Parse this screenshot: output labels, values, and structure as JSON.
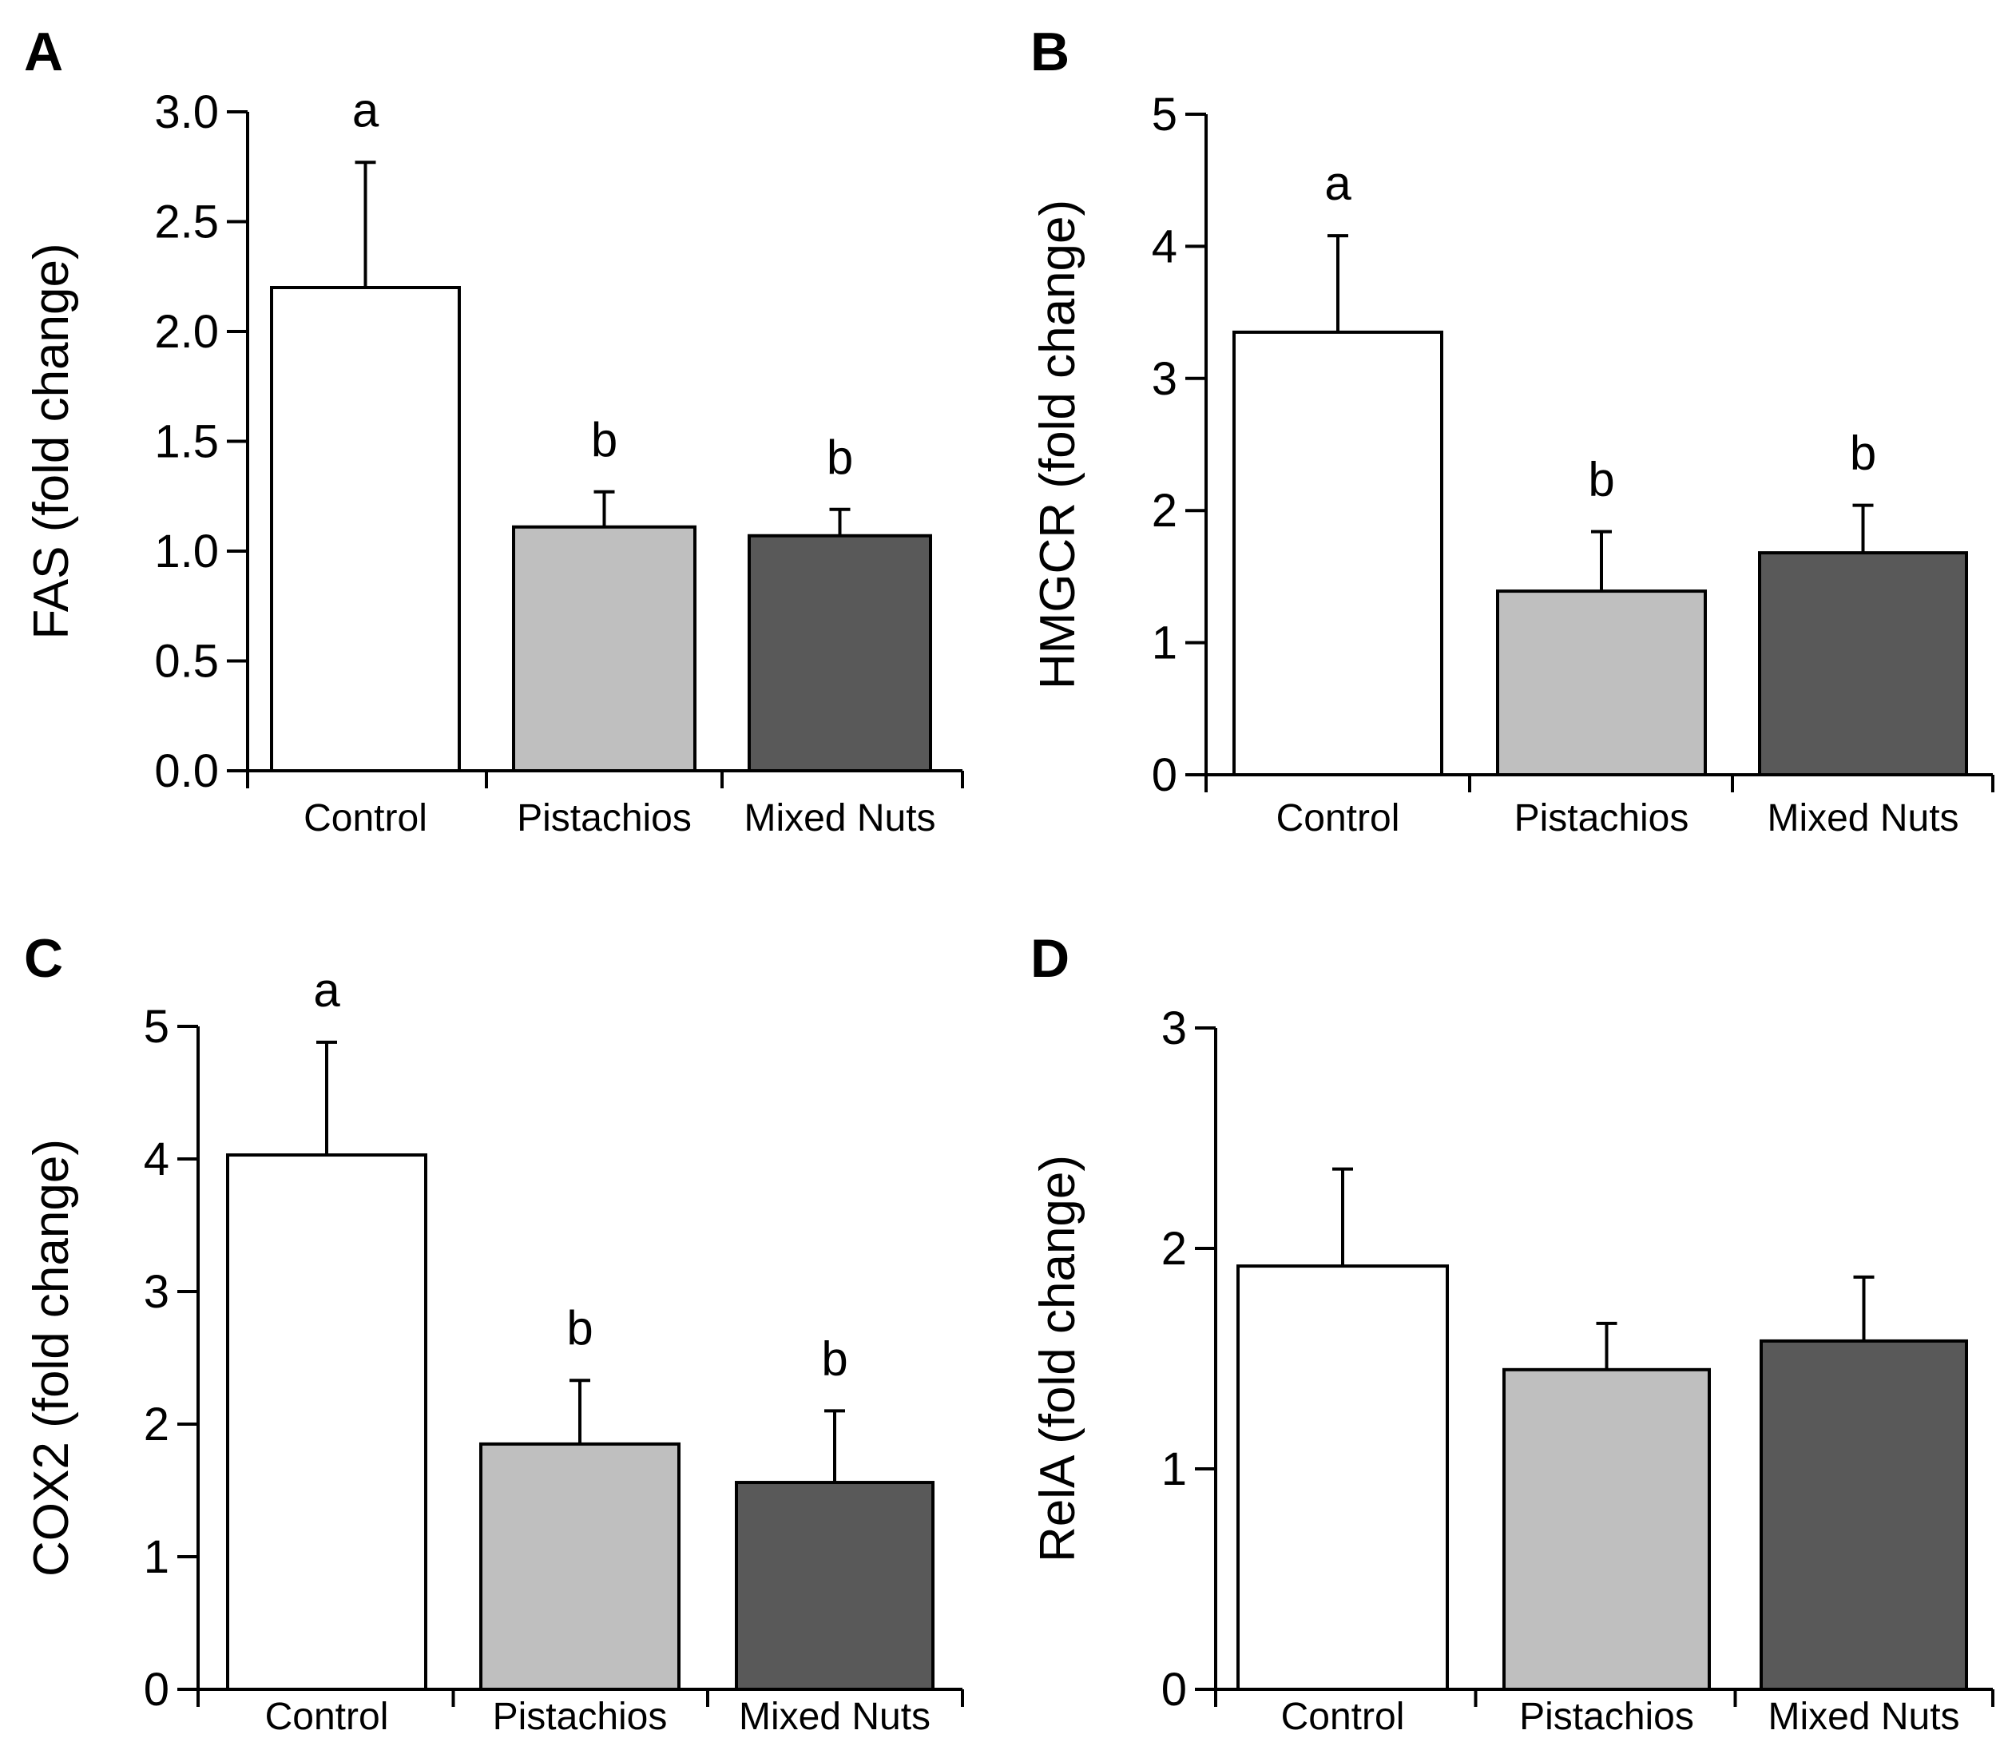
{
  "colors": {
    "control": "#ffffff",
    "pistachios": "#bfbfbf",
    "mixed_nuts": "#595959",
    "axis": "#000000"
  },
  "chart_data": [
    {
      "panel": "A",
      "type": "bar",
      "ylabel": "FAS (fold change)",
      "ylim": [
        0,
        3.0
      ],
      "yticks": [
        "0.0",
        "0.5",
        "1.0",
        "1.5",
        "2.0",
        "2.5",
        "3.0"
      ],
      "categories": [
        "Control",
        "Pistachios",
        "Mixed Nuts"
      ],
      "values": [
        2.2,
        1.11,
        1.07
      ],
      "errors": [
        0.57,
        0.16,
        0.12
      ],
      "significance": [
        "a",
        "b",
        "b"
      ]
    },
    {
      "panel": "B",
      "type": "bar",
      "ylabel": "HMGCR (fold change)",
      "ylim": [
        0,
        5
      ],
      "yticks": [
        "0",
        "1",
        "2",
        "3",
        "4",
        "5"
      ],
      "categories": [
        "Control",
        "Pistachios",
        "Mixed Nuts"
      ],
      "values": [
        3.35,
        1.39,
        1.68
      ],
      "errors": [
        0.73,
        0.45,
        0.36
      ],
      "significance": [
        "a",
        "b",
        "b"
      ]
    },
    {
      "panel": "C",
      "type": "bar",
      "ylabel": "COX2 (fold change)",
      "ylim": [
        0,
        5
      ],
      "yticks": [
        "0",
        "1",
        "2",
        "3",
        "4",
        "5"
      ],
      "categories": [
        "Control",
        "Pistachios",
        "Mixed Nuts"
      ],
      "values": [
        4.03,
        1.85,
        1.56
      ],
      "errors": [
        0.85,
        0.48,
        0.54
      ],
      "significance": [
        "a",
        "b",
        "b"
      ]
    },
    {
      "panel": "D",
      "type": "bar",
      "ylabel": "RelA (fold change)",
      "ylim": [
        0,
        3
      ],
      "yticks": [
        "0",
        "1",
        "2",
        "3"
      ],
      "categories": [
        "Control",
        "Pistachios",
        "Mixed Nuts"
      ],
      "values": [
        1.92,
        1.45,
        1.58
      ],
      "errors": [
        0.44,
        0.21,
        0.29
      ],
      "significance": [
        "",
        "",
        ""
      ]
    }
  ]
}
